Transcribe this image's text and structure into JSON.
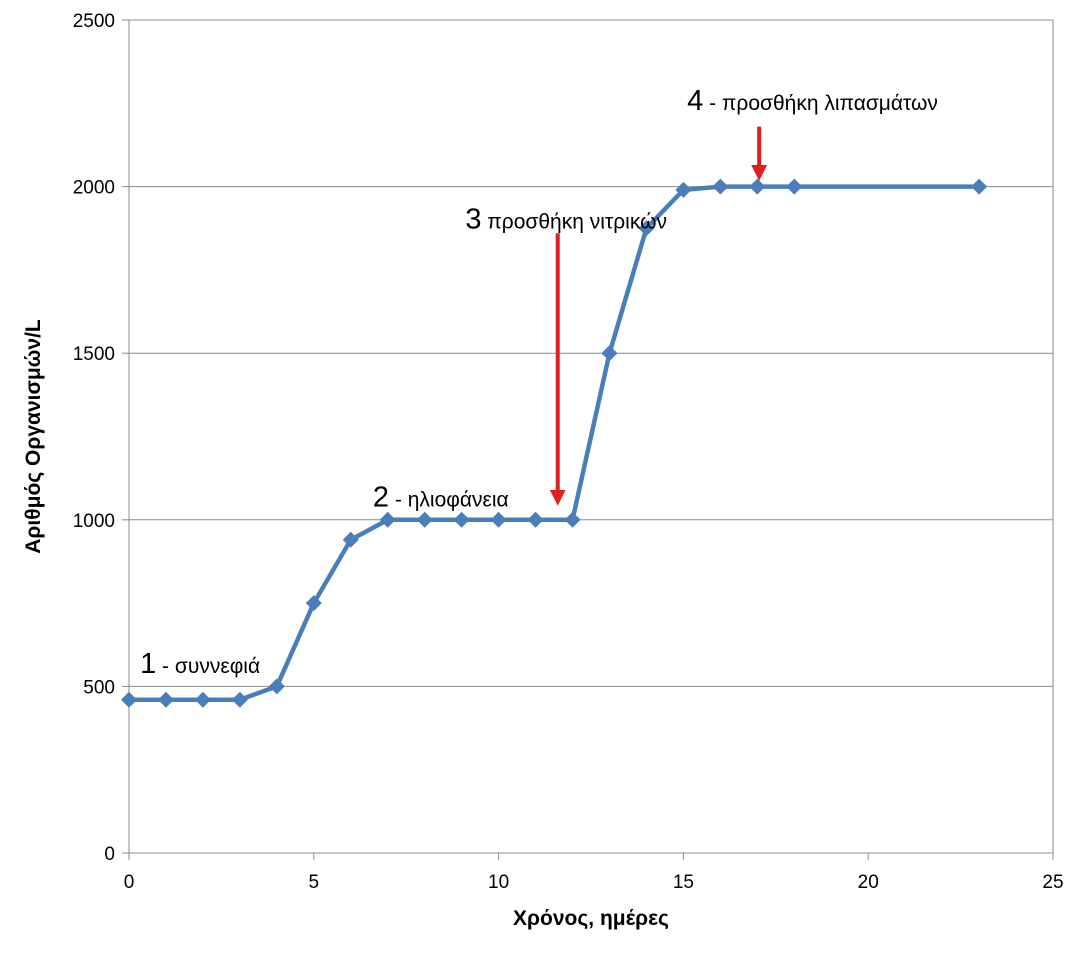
{
  "chart_data": {
    "type": "line",
    "title": "",
    "xlabel": "Χρόνος, ημέρες",
    "ylabel": "Αριθμός Οργανισμών/L",
    "xlim": [
      0,
      25
    ],
    "ylim": [
      0,
      2500
    ],
    "xticks": [
      "0",
      "5",
      "10",
      "15",
      "20",
      "25"
    ],
    "yticks": [
      "0",
      "500",
      "1000",
      "1500",
      "2000",
      "2500"
    ],
    "grid": "horizontal",
    "legend": "none",
    "colors": {
      "series": "#4a7ebb",
      "arrow": "#e02020",
      "grid": "#8c8c8c"
    },
    "series": [
      {
        "x": [
          0,
          1,
          2,
          3,
          4,
          5,
          6,
          7,
          8,
          9,
          10,
          11,
          12,
          13,
          14,
          15,
          16,
          17,
          18,
          23
        ],
        "values": [
          460,
          460,
          460,
          460,
          500,
          750,
          940,
          1000,
          1000,
          1000,
          1000,
          1000,
          1000,
          1500,
          1875,
          1990,
          2000,
          2000,
          2000,
          2000
        ]
      }
    ],
    "annotations": [
      {
        "num": "1",
        "text": " - συννεφιά",
        "x": 0.3,
        "y": 540
      },
      {
        "num": "2",
        "text": " - ηλιοφάνεια",
        "x": 6.6,
        "y": 1040
      },
      {
        "num": "3",
        "text": " προσθήκη νιτρικών",
        "x": 9.1,
        "y": 1875
      },
      {
        "num": "4",
        "text": " - προσθήκη λιπασμάτων",
        "x": 15.1,
        "y": 2230
      }
    ],
    "arrows": [
      {
        "x": 11.6,
        "y_from": 1860,
        "y_to": 1030
      },
      {
        "x": 17.05,
        "y_from": 2180,
        "y_to": 2005
      }
    ]
  }
}
